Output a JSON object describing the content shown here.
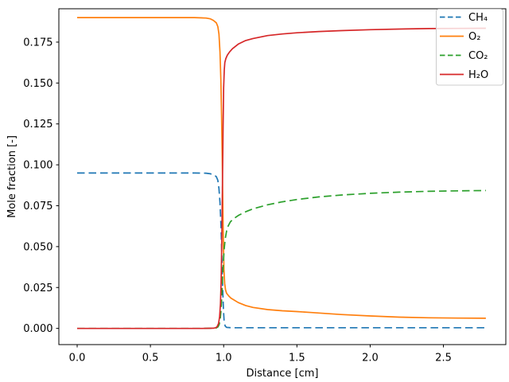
{
  "figure": {
    "background": "#ffffff",
    "axis_color": "#000000"
  },
  "chart_data": {
    "type": "line",
    "xlabel": "Distance [cm]",
    "ylabel": "Mole fraction [-]",
    "xlim": [
      -0.125,
      2.926
    ],
    "ylim": [
      -0.0099,
      0.1954
    ],
    "grid": false,
    "legend": {
      "position": "upper right",
      "frame_color": "#cccccc",
      "frame_alpha": 0.8
    },
    "x_ticks": {
      "values": [
        0.0,
        0.5,
        1.0,
        1.5,
        2.0,
        2.5
      ],
      "labels": [
        "0.0",
        "0.5",
        "1.0",
        "1.5",
        "2.0",
        "2.5"
      ]
    },
    "y_ticks": {
      "values": [
        0.0,
        0.025,
        0.05,
        0.075,
        0.1,
        0.125,
        0.15,
        0.175
      ],
      "labels": [
        "0.000",
        "0.025",
        "0.050",
        "0.075",
        "0.100",
        "0.125",
        "0.150",
        "0.175"
      ]
    },
    "series": [
      {
        "id": "ch4",
        "label": "CH₄",
        "color": "#1f77b4",
        "linestyle": "dashed",
        "points": [
          [
            0,
            0.095
          ],
          [
            0.3,
            0.095
          ],
          [
            0.6,
            0.095
          ],
          [
            0.8,
            0.095
          ],
          [
            0.88,
            0.0949
          ],
          [
            0.91,
            0.0945
          ],
          [
            0.93,
            0.094
          ],
          [
            0.95,
            0.0928
          ],
          [
            0.96,
            0.0905
          ],
          [
            0.968,
            0.0855
          ],
          [
            0.975,
            0.077
          ],
          [
            0.982,
            0.062
          ],
          [
            0.988,
            0.043
          ],
          [
            0.993,
            0.026
          ],
          [
            0.998,
            0.012
          ],
          [
            1.003,
            0.0045
          ],
          [
            1.01,
            0.0015
          ],
          [
            1.02,
            0.0006
          ],
          [
            1.05,
            0.0004
          ],
          [
            1.2,
            0.0004
          ],
          [
            1.6,
            0.0004
          ],
          [
            2.0,
            0.0004
          ],
          [
            2.4,
            0.0004
          ],
          [
            2.79,
            0.0004
          ]
        ]
      },
      {
        "id": "o2",
        "label": "O₂",
        "color": "#ff7f0e",
        "linestyle": "solid",
        "points": [
          [
            0,
            0.19
          ],
          [
            0.3,
            0.19
          ],
          [
            0.6,
            0.19
          ],
          [
            0.8,
            0.19
          ],
          [
            0.88,
            0.1897
          ],
          [
            0.91,
            0.1892
          ],
          [
            0.93,
            0.1883
          ],
          [
            0.95,
            0.1868
          ],
          [
            0.96,
            0.1845
          ],
          [
            0.968,
            0.18
          ],
          [
            0.975,
            0.169
          ],
          [
            0.981,
            0.152
          ],
          [
            0.986,
            0.13
          ],
          [
            0.99,
            0.105
          ],
          [
            0.994,
            0.078
          ],
          [
            0.998,
            0.052
          ],
          [
            1.002,
            0.036
          ],
          [
            1.007,
            0.0275
          ],
          [
            1.013,
            0.0235
          ],
          [
            1.02,
            0.0215
          ],
          [
            1.035,
            0.0198
          ],
          [
            1.05,
            0.0185
          ],
          [
            1.1,
            0.0158
          ],
          [
            1.15,
            0.014
          ],
          [
            1.2,
            0.0128
          ],
          [
            1.3,
            0.0115
          ],
          [
            1.4,
            0.0108
          ],
          [
            1.5,
            0.0103
          ],
          [
            1.6,
            0.0097
          ],
          [
            1.8,
            0.0085
          ],
          [
            2.0,
            0.0076
          ],
          [
            2.2,
            0.0069
          ],
          [
            2.4,
            0.0065
          ],
          [
            2.6,
            0.0063
          ],
          [
            2.79,
            0.0062
          ]
        ]
      },
      {
        "id": "co2",
        "label": "CO₂",
        "color": "#2ca02c",
        "linestyle": "dashed",
        "points": [
          [
            0,
            0
          ],
          [
            0.3,
            0
          ],
          [
            0.6,
            0
          ],
          [
            0.85,
            0
          ],
          [
            0.93,
            0.0001
          ],
          [
            0.95,
            0.0003
          ],
          [
            0.962,
            0.001
          ],
          [
            0.97,
            0.0025
          ],
          [
            0.977,
            0.006
          ],
          [
            0.983,
            0.012
          ],
          [
            0.988,
            0.021
          ],
          [
            0.993,
            0.032
          ],
          [
            0.998,
            0.041
          ],
          [
            1.003,
            0.048
          ],
          [
            1.01,
            0.0545
          ],
          [
            1.02,
            0.0595
          ],
          [
            1.03,
            0.0625
          ],
          [
            1.045,
            0.065
          ],
          [
            1.06,
            0.0665
          ],
          [
            1.08,
            0.0678
          ],
          [
            1.1,
            0.069
          ],
          [
            1.15,
            0.0713
          ],
          [
            1.2,
            0.0731
          ],
          [
            1.3,
            0.0756
          ],
          [
            1.4,
            0.0774
          ],
          [
            1.5,
            0.0788
          ],
          [
            1.65,
            0.0804
          ],
          [
            1.8,
            0.0815
          ],
          [
            2.0,
            0.0826
          ],
          [
            2.2,
            0.0833
          ],
          [
            2.4,
            0.0838
          ],
          [
            2.6,
            0.0841
          ],
          [
            2.79,
            0.0843
          ]
        ]
      },
      {
        "id": "h2o",
        "label": "H₂O",
        "color": "#d62728",
        "linestyle": "solid",
        "points": [
          [
            0,
            0
          ],
          [
            0.3,
            0
          ],
          [
            0.6,
            0
          ],
          [
            0.85,
            0
          ],
          [
            0.93,
            0.0001
          ],
          [
            0.945,
            0.0004
          ],
          [
            0.955,
            0.001
          ],
          [
            0.965,
            0.003
          ],
          [
            0.972,
            0.007
          ],
          [
            0.978,
            0.015
          ],
          [
            0.983,
            0.03
          ],
          [
            0.988,
            0.058
          ],
          [
            0.992,
            0.092
          ],
          [
            0.996,
            0.123
          ],
          [
            1.0,
            0.147
          ],
          [
            1.004,
            0.158
          ],
          [
            1.008,
            0.1625
          ],
          [
            1.015,
            0.165
          ],
          [
            1.025,
            0.167
          ],
          [
            1.04,
            0.169
          ],
          [
            1.06,
            0.171
          ],
          [
            1.1,
            0.1738
          ],
          [
            1.15,
            0.176
          ],
          [
            1.2,
            0.1772
          ],
          [
            1.3,
            0.179
          ],
          [
            1.4,
            0.18
          ],
          [
            1.5,
            0.1807
          ],
          [
            1.65,
            0.1815
          ],
          [
            1.8,
            0.182
          ],
          [
            2.0,
            0.1826
          ],
          [
            2.2,
            0.183
          ],
          [
            2.4,
            0.1833
          ],
          [
            2.6,
            0.1834
          ],
          [
            2.79,
            0.1835
          ]
        ]
      }
    ]
  }
}
